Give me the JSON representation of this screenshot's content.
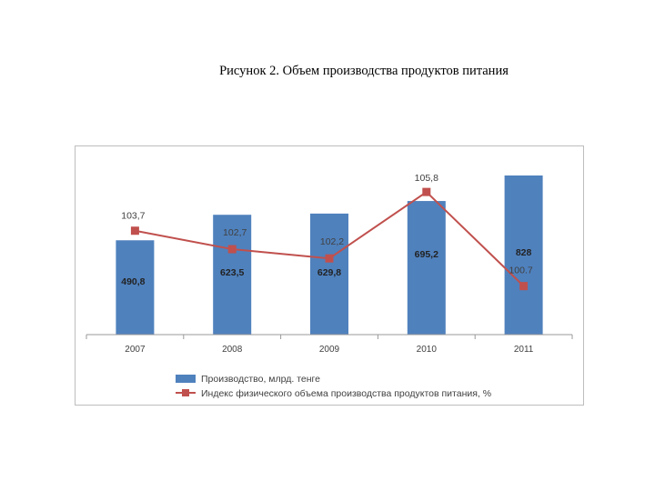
{
  "caption": "Рисунок 2. Объем производства продуктов питания",
  "chart_data": {
    "type": "bar",
    "categories": [
      "2007",
      "2008",
      "2009",
      "2010",
      "2011"
    ],
    "series": [
      {
        "name": "Производство, млрд. тенге",
        "kind": "bar",
        "color": "#4f81bd",
        "values": [
          490.8,
          623.5,
          629.8,
          695.2,
          828
        ],
        "labels": [
          "490,8",
          "623,5",
          "629,8",
          "695,2",
          "828"
        ]
      },
      {
        "name": "Индекс физического объема производства продуктов питания, %",
        "kind": "line",
        "color": "#c0504d",
        "values": [
          103.7,
          102.7,
          102.2,
          105.8,
          100.7
        ],
        "labels": [
          "103,7",
          "102,7",
          "102,2",
          "105,8",
          "100.7"
        ]
      }
    ],
    "title": "",
    "xlabel": "",
    "ylabel": "",
    "grid": false,
    "legend": "bottom"
  }
}
